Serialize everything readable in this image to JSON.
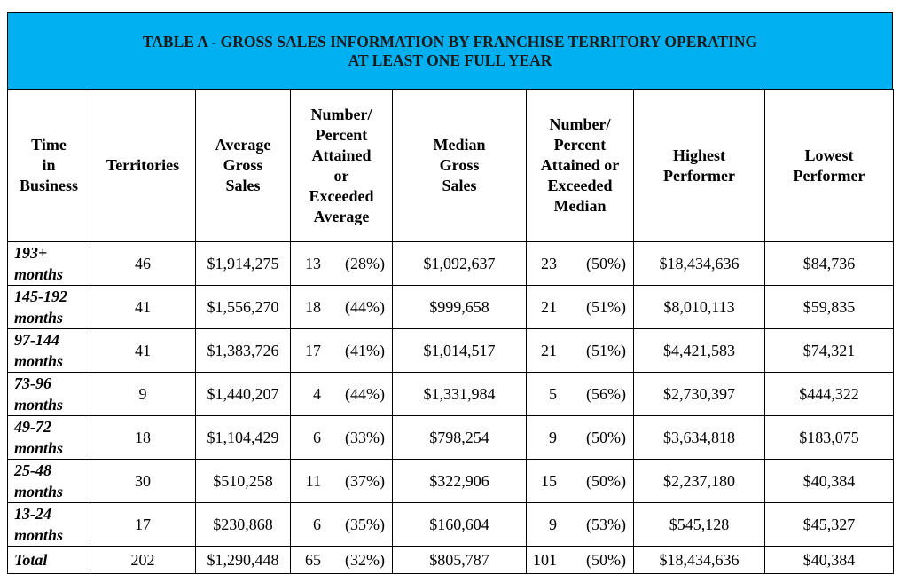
{
  "title": {
    "line1": "TABLE A - GROSS SALES INFORMATION BY FRANCHISE TERRITORY OPERATING",
    "line2": "AT LEAST ONE FULL YEAR"
  },
  "headers": {
    "time": [
      "Time",
      "in",
      "Business"
    ],
    "territories": [
      "Territories"
    ],
    "avg_sales": [
      "Average",
      "Gross",
      "Sales"
    ],
    "num_pct_avg": [
      "Number/",
      "Percent",
      "Attained",
      "or",
      "Exceeded",
      "Average"
    ],
    "median_sales": [
      "Median",
      "Gross",
      "Sales"
    ],
    "num_pct_median": [
      "Number/",
      "Percent",
      "Attained or",
      "Exceeded",
      "Median"
    ],
    "highest": [
      "Highest",
      "Performer"
    ],
    "lowest": [
      "Lowest",
      "Performer"
    ]
  },
  "rows": [
    {
      "time": [
        "193+",
        "months"
      ],
      "territories": "46",
      "avg": "$1,914,275",
      "avg_n": "13",
      "avg_p": "(28%)",
      "median": "$1,092,637",
      "med_n": "23",
      "med_p": "(50%)",
      "high": "$18,434,636",
      "low": "$84,736"
    },
    {
      "time": [
        "145-192",
        "months"
      ],
      "territories": "41",
      "avg": "$1,556,270",
      "avg_n": "18",
      "avg_p": "(44%)",
      "median": "$999,658",
      "med_n": "21",
      "med_p": "(51%)",
      "high": "$8,010,113",
      "low": "$59,835"
    },
    {
      "time": [
        "97-144",
        "months"
      ],
      "territories": "41",
      "avg": "$1,383,726",
      "avg_n": "17",
      "avg_p": "(41%)",
      "median": "$1,014,517",
      "med_n": "21",
      "med_p": "(51%)",
      "high": "$4,421,583",
      "low": "$74,321"
    },
    {
      "time": [
        "73-96",
        "months"
      ],
      "territories": "9",
      "avg": "$1,440,207",
      "avg_n": "4",
      "avg_p": "(44%)",
      "median": "$1,331,984",
      "med_n": "5",
      "med_p": "(56%)",
      "high": "$2,730,397",
      "low": "$444,322"
    },
    {
      "time": [
        "49-72",
        "months"
      ],
      "territories": "18",
      "avg": "$1,104,429",
      "avg_n": "6",
      "avg_p": "(33%)",
      "median": "$798,254",
      "med_n": "9",
      "med_p": "(50%)",
      "high": "$3,634,818",
      "low": "$183,075"
    },
    {
      "time": [
        "25-48",
        "months"
      ],
      "territories": "30",
      "avg": "$510,258",
      "avg_n": "11",
      "avg_p": "(37%)",
      "median": "$322,906",
      "med_n": "15",
      "med_p": "(50%)",
      "high": "$2,237,180",
      "low": "$40,384"
    },
    {
      "time": [
        "13-24",
        "months"
      ],
      "territories": "17",
      "avg": "$230,868",
      "avg_n": "6",
      "avg_p": "(35%)",
      "median": "$160,604",
      "med_n": "9",
      "med_p": "(53%)",
      "high": "$545,128",
      "low": "$45,327"
    }
  ],
  "total": {
    "label": "Total",
    "territories": "202",
    "avg": "$1,290,448",
    "avg_n": "65",
    "avg_p": "(32%)",
    "median": "$805,787",
    "med_n": "101",
    "med_p": "(50%)",
    "high": "$18,434,636",
    "low": "$40,384"
  },
  "colors": {
    "title_bg": "#00b0f0"
  }
}
